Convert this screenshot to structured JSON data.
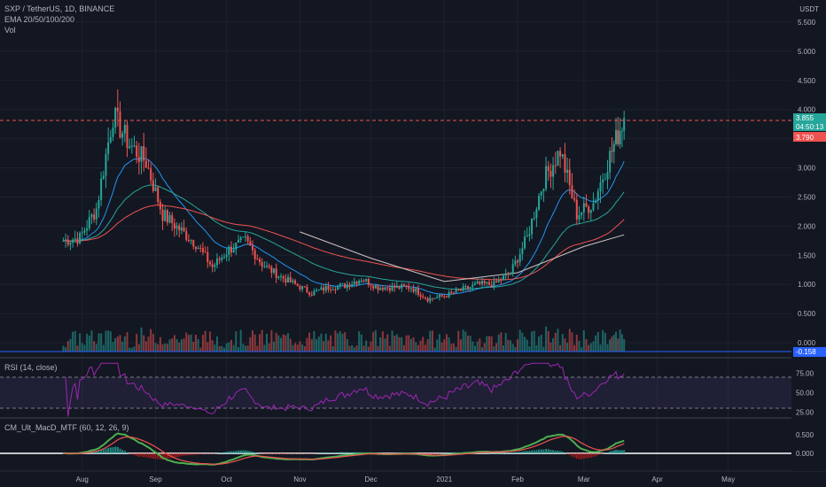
{
  "legend": {
    "title": "SXP / TetherUS, 1D, BINANCE",
    "ema": "EMA 20/50/100/200",
    "vol": "Vol",
    "rsi": "RSI (14, close)",
    "macd": "CM_Ult_MacD_MTF (60, 12, 26, 9)"
  },
  "price_axis": {
    "unit": "USDT",
    "ticks": [
      "5.500",
      "5.000",
      "4.500",
      "4.000",
      "3.500",
      "3.000",
      "2.500",
      "2.000",
      "1.500",
      "1.000",
      "0.500",
      "0.000"
    ],
    "last_price": "3.855",
    "countdown": "04:50:13",
    "level_price": "3.790",
    "macd_tag": "-0.158"
  },
  "rsi_axis": {
    "ticks": [
      "75.00",
      "50.00",
      "25.00"
    ]
  },
  "macd_axis": {
    "ticks": [
      "0.500",
      "0.000"
    ]
  },
  "time_axis": {
    "labels": [
      "Aug",
      "Sep",
      "Oct",
      "Nov",
      "Dec",
      "2021",
      "Feb",
      "Mar",
      "Apr",
      "May"
    ]
  },
  "colors": {
    "background": "#131722",
    "up": "#26a69a",
    "down": "#ef5350",
    "last_price_tag": "#26a69a",
    "level_tag": "#ef5350",
    "macd_tag": "#2962ff",
    "rsi_band": "#7e57c2",
    "rsi_line": "#9c27b0"
  },
  "chart_data": {
    "type": "candlestick",
    "symbol": "SXP / TetherUS",
    "interval": "1D",
    "exchange": "BINANCE",
    "price_range": [
      -0.2,
      5.8
    ],
    "horizontal_level": 3.79,
    "last_price": 3.855,
    "candles_close_weekly": [
      {
        "date": "2020-07-24",
        "close": 1.75
      },
      {
        "date": "2020-07-31",
        "close": 1.8
      },
      {
        "date": "2020-08-07",
        "close": 2.3
      },
      {
        "date": "2020-08-14",
        "close": 3.9
      },
      {
        "date": "2020-08-21",
        "close": 3.4
      },
      {
        "date": "2020-08-28",
        "close": 3.1
      },
      {
        "date": "2020-09-04",
        "close": 2.2
      },
      {
        "date": "2020-09-11",
        "close": 1.95
      },
      {
        "date": "2020-09-18",
        "close": 1.7
      },
      {
        "date": "2020-09-25",
        "close": 1.3
      },
      {
        "date": "2020-10-02",
        "close": 1.6
      },
      {
        "date": "2020-10-09",
        "close": 1.75
      },
      {
        "date": "2020-10-16",
        "close": 1.35
      },
      {
        "date": "2020-10-23",
        "close": 1.15
      },
      {
        "date": "2020-10-30",
        "close": 1.0
      },
      {
        "date": "2020-11-06",
        "close": 0.85
      },
      {
        "date": "2020-11-13",
        "close": 0.95
      },
      {
        "date": "2020-11-20",
        "close": 0.98
      },
      {
        "date": "2020-11-27",
        "close": 1.1
      },
      {
        "date": "2020-12-04",
        "close": 0.95
      },
      {
        "date": "2020-12-11",
        "close": 0.95
      },
      {
        "date": "2020-12-18",
        "close": 0.95
      },
      {
        "date": "2020-12-25",
        "close": 0.75
      },
      {
        "date": "2021-01-01",
        "close": 0.8
      },
      {
        "date": "2021-01-08",
        "close": 0.9
      },
      {
        "date": "2021-01-15",
        "close": 1.0
      },
      {
        "date": "2021-01-22",
        "close": 1.0
      },
      {
        "date": "2021-01-29",
        "close": 1.2
      },
      {
        "date": "2021-02-05",
        "close": 1.8
      },
      {
        "date": "2021-02-12",
        "close": 2.8
      },
      {
        "date": "2021-02-19",
        "close": 3.3
      },
      {
        "date": "2021-02-26",
        "close": 2.2
      },
      {
        "date": "2021-03-05",
        "close": 2.4
      },
      {
        "date": "2021-03-12",
        "close": 3.2
      },
      {
        "date": "2021-03-18",
        "close": 3.855
      }
    ],
    "ema_200_path": [
      {
        "date": "2020-11-01",
        "value": 1.9
      },
      {
        "date": "2020-12-01",
        "value": 1.45
      },
      {
        "date": "2021-01-01",
        "value": 1.05
      },
      {
        "date": "2021-02-01",
        "value": 1.2
      },
      {
        "date": "2021-03-01",
        "value": 1.65
      },
      {
        "date": "2021-03-18",
        "value": 1.85
      }
    ],
    "rsi_range": [
      10,
      90
    ],
    "rsi_levels": [
      70,
      30
    ],
    "macd_range": [
      -0.3,
      0.8
    ]
  }
}
